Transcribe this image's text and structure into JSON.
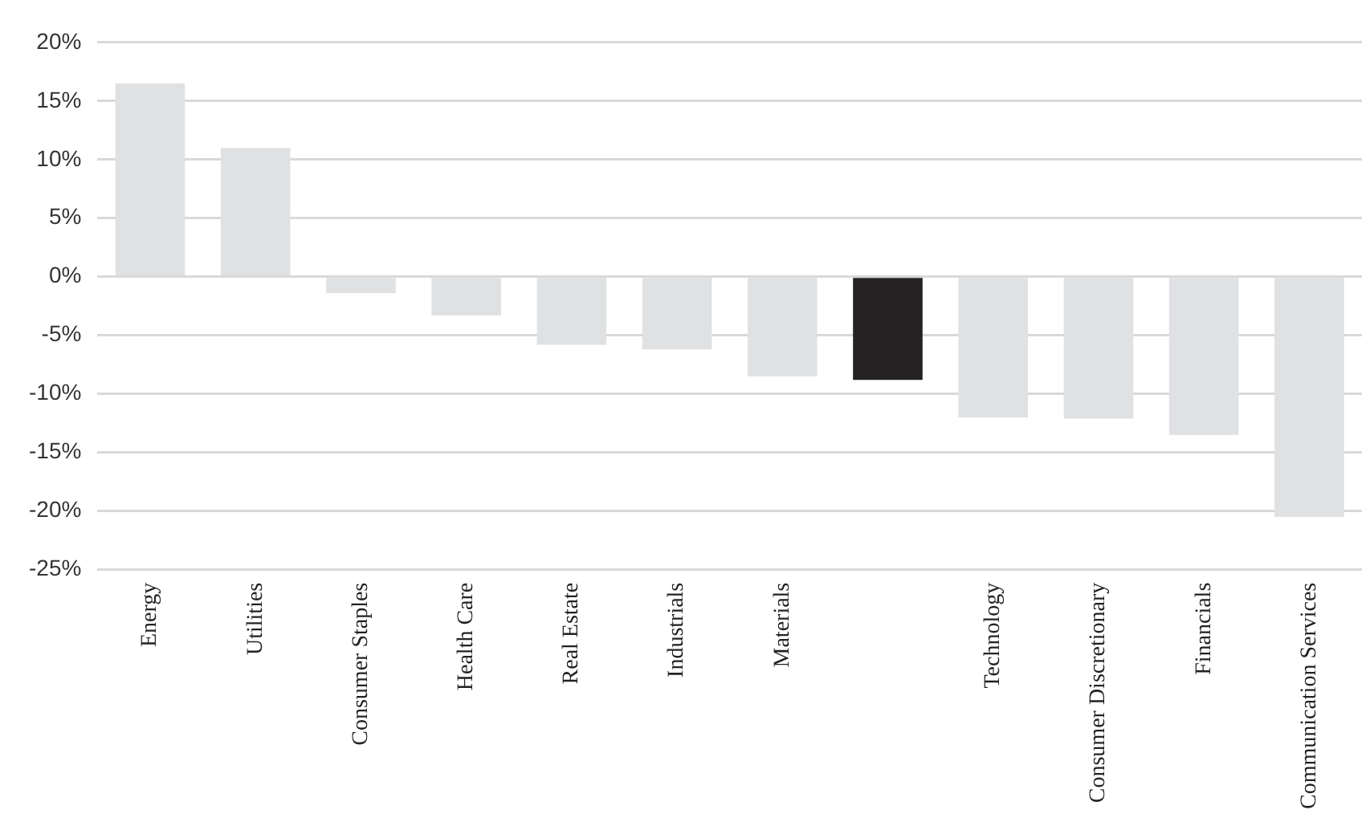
{
  "chart_data": {
    "type": "bar",
    "categories": [
      "Energy",
      "Utilities",
      "Consumer Staples",
      "Health Care",
      "Real Estate",
      "Industrials",
      "Materials",
      null,
      "Technology",
      "Consumer Discretionary",
      "Financials",
      "Communication Services"
    ],
    "values": [
      16.5,
      11.0,
      -1.4,
      -3.3,
      -5.8,
      -6.2,
      -8.5,
      -8.8,
      -12.0,
      -12.1,
      -13.5,
      -20.5
    ],
    "colors": [
      "#e0e1e3",
      "#e0e1e3",
      "#e0e1e3",
      "#e0e1e3",
      "#e0e1e3",
      "#e0e1e3",
      "#e0e1e3",
      "#252223",
      "#e0e1e3",
      "#e0e1e3",
      "#e0e1e3",
      "#e0e1e3"
    ],
    "ylim": [
      -25,
      20
    ],
    "yticks": [
      {
        "value": -25,
        "label": "-25%"
      },
      {
        "value": -20,
        "label": "-20%"
      },
      {
        "value": -15,
        "label": "-15%"
      },
      {
        "value": -10,
        "label": "-10%"
      },
      {
        "value": -5,
        "label": "-5%"
      },
      {
        "value": 0,
        "label": "0%"
      },
      {
        "value": 5,
        "label": "5%"
      },
      {
        "value": 10,
        "label": "10%"
      },
      {
        "value": 15,
        "label": "15%"
      },
      {
        "value": 20,
        "label": "20%"
      }
    ],
    "grid": "y",
    "legend": false
  }
}
